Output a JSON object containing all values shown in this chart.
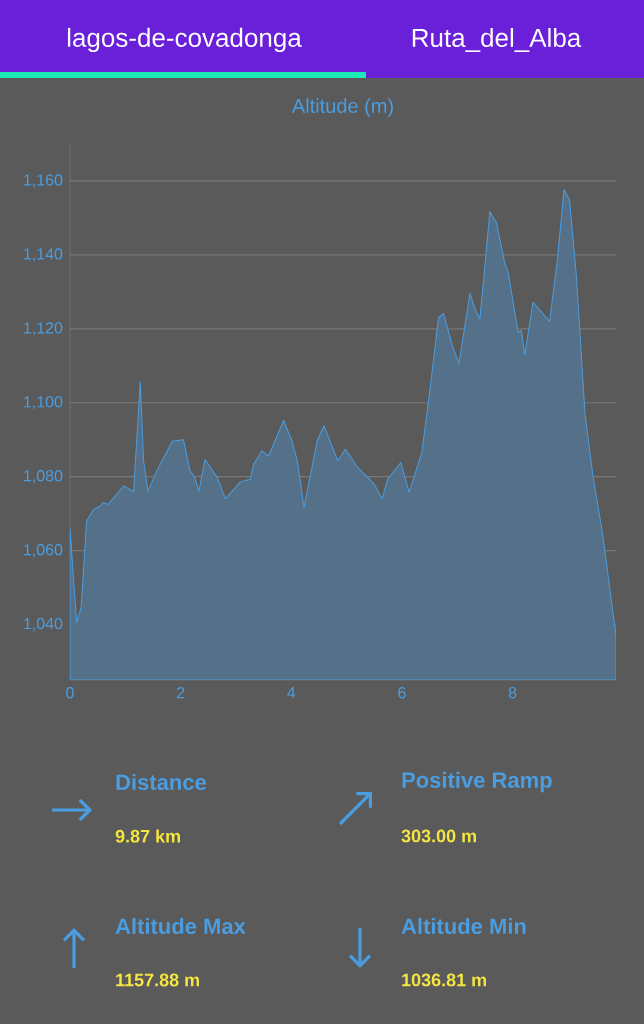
{
  "chart_data": {
    "type": "area",
    "title": "Altitude (m)",
    "color": "#4a9de0",
    "x": [
      0,
      0.12,
      0.2,
      0.3,
      0.42,
      0.54,
      0.6,
      0.69,
      0.97,
      1.15,
      1.27,
      1.33,
      1.41,
      1.57,
      1.85,
      2.05,
      2.17,
      2.25,
      2.33,
      2.44,
      2.66,
      2.81,
      3.08,
      3.26,
      3.32,
      3.47,
      3.59,
      3.86,
      4.01,
      4.11,
      4.23,
      4.47,
      4.59,
      4.84,
      4.98,
      5.2,
      5.5,
      5.64,
      5.74,
      5.98,
      6.13,
      6.36,
      6.51,
      6.66,
      6.75,
      6.91,
      7.03,
      7.23,
      7.33,
      7.41,
      7.59,
      7.71,
      7.86,
      7.92,
      8.1,
      8.16,
      8.22,
      8.37,
      8.67,
      8.81,
      8.93,
      9.03,
      9.15,
      9.31,
      9.45,
      9.63,
      9.87
    ],
    "values": [
      1066,
      1040.5,
      1044.5,
      1068,
      1071,
      1072,
      1073,
      1072.5,
      1077.5,
      1076,
      1105.7,
      1084.3,
      1076,
      1081.6,
      1089.6,
      1090,
      1081.6,
      1080,
      1076,
      1084.7,
      1079.8,
      1074,
      1078.6,
      1079.3,
      1083.4,
      1087,
      1085.6,
      1095.2,
      1089.8,
      1084.3,
      1071.7,
      1089.8,
      1093.8,
      1084.3,
      1087.4,
      1082.5,
      1078,
      1074,
      1079.3,
      1083.8,
      1075.8,
      1086.5,
      1103.9,
      1122.9,
      1124.2,
      1115.5,
      1110.6,
      1129.6,
      1125,
      1122.7,
      1151.7,
      1148.6,
      1137.7,
      1135.4,
      1119,
      1119.6,
      1112.9,
      1127.2,
      1122,
      1138.6,
      1157.6,
      1154.9,
      1135,
      1097,
      1080.6,
      1064.3,
      1037
    ],
    "xlim": [
      0,
      9.87
    ],
    "ylim": [
      1025,
      1170
    ],
    "xticks": [
      0,
      2,
      4,
      6,
      8
    ],
    "yticks": [
      {
        "value": 1040,
        "label": "1,040"
      },
      {
        "value": 1060,
        "label": "1,060"
      },
      {
        "value": 1080,
        "label": "1,080"
      },
      {
        "value": 1100,
        "label": "1,100"
      },
      {
        "value": 1120,
        "label": "1,120"
      },
      {
        "value": 1140,
        "label": "1,140"
      },
      {
        "value": 1160,
        "label": "1,160"
      }
    ],
    "grid": "y",
    "annotations": [
      "lagos-de-covadonga",
      "Ruta_del_Alba",
      "Distance",
      "9.87 km",
      "Positive Ramp",
      "303.00 m",
      "Altitude Max",
      "1157.88 m",
      "Altitude Min",
      "1036.81 m"
    ]
  }
}
